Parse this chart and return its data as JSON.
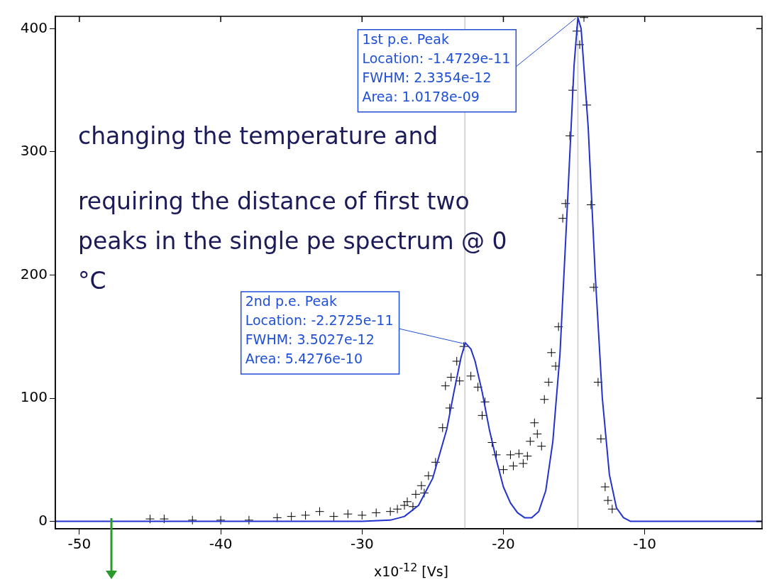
{
  "chart_data": {
    "type": "scatter",
    "xlabel": "x10$^{-12}$ [Vs]",
    "xlim": [
      -51.7,
      -1.7
    ],
    "ylim": [
      -6,
      410
    ],
    "xticks": [
      -50,
      -40,
      -30,
      -20,
      -10
    ],
    "yticks": [
      0,
      100,
      200,
      300,
      400
    ],
    "grid": false,
    "legend": false,
    "series": [
      {
        "type": "scatter",
        "color": "#000000",
        "marker": "cross",
        "x": [
          -45,
          -44,
          -42,
          -40,
          -38,
          -36,
          -35,
          -34,
          -33,
          -32,
          -31,
          -30,
          -29,
          -28,
          -27.5,
          -27,
          -26.8,
          -26.4,
          -26.2,
          -25.8,
          -25.6,
          -25.3,
          -24.8,
          -24.3,
          -24.1,
          -23.8,
          -23.7,
          -23.3,
          -23.1,
          -22.8,
          -22.3,
          -21.8,
          -21.5,
          -21.3,
          -20.8,
          -20.5,
          -20,
          -19.5,
          -19.3,
          -18.9,
          -18.6,
          -18.3,
          -18.1,
          -17.8,
          -17.6,
          -17.3,
          -17.1,
          -16.8,
          -16.6,
          -16.3,
          -16.1,
          -15.8,
          -15.6,
          -15.3,
          -15.1,
          -14.8,
          -14.6,
          -14.3,
          -14.1,
          -13.8,
          -13.6,
          -13.3,
          -13.1,
          -12.8,
          -12.6,
          -12.3
        ],
        "values": [
          2,
          2,
          1,
          1,
          1,
          3,
          4,
          5,
          8,
          4,
          6,
          5,
          7,
          8,
          10,
          13,
          16,
          12,
          22,
          29,
          23,
          37,
          48,
          76,
          110,
          92,
          117,
          130,
          114,
          142,
          118,
          109,
          86,
          97,
          64,
          54,
          42,
          54,
          45,
          55,
          47,
          53,
          65,
          80,
          71,
          61,
          99,
          113,
          137,
          126,
          158,
          246,
          258,
          313,
          350,
          398,
          387,
          409,
          338,
          257,
          190,
          113,
          67,
          28,
          17,
          10
        ]
      },
      {
        "type": "line",
        "color": "#2233cc",
        "marker": "none",
        "line_style": "solid",
        "x": [
          -51.7,
          -30,
          -28,
          -27,
          -26,
          -25,
          -24,
          -23.5,
          -23,
          -22.7,
          -22.3,
          -22,
          -21.5,
          -21,
          -20.5,
          -20,
          -19.5,
          -19,
          -18.5,
          -18,
          -17.5,
          -17,
          -16.5,
          -16,
          -15.5,
          -15,
          -14.73,
          -14.5,
          -14,
          -13.5,
          -13,
          -12.5,
          -12,
          -11.5,
          -11,
          -1.7
        ],
        "values": [
          0,
          0,
          1,
          4,
          13,
          35,
          75,
          105,
          133,
          145,
          140,
          130,
          105,
          75,
          50,
          28,
          15,
          7,
          3,
          3,
          8,
          25,
          65,
          135,
          250,
          370,
          409,
          400,
          320,
          200,
          100,
          38,
          11,
          3,
          0,
          0
        ]
      }
    ],
    "ref_lines": [
      {
        "axis": "x",
        "value": -22.725,
        "color": "#cccccc"
      },
      {
        "axis": "x",
        "value": -14.729,
        "color": "#cccccc"
      }
    ],
    "annotations": [
      {
        "text": "1st p.e. Peak\nLocation: -1.4729e-11\nFWHM: 2.3354e-12\nArea: 1.0178e-09",
        "x": -14.73,
        "y": 409
      },
      {
        "text": "2nd p.e. Peak\nLocation: -2.2725e-11\nFWHM: 3.5027e-12\nArea: 5.4276e-10",
        "x": -22.7,
        "y": 145
      },
      "changing the temperature and",
      "requiring the distance of first two peaks in the single pe spectrum @ 0 °C"
    ]
  }
}
